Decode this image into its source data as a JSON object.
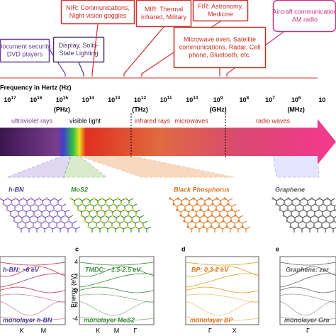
{
  "boxes": [
    {
      "text": [
        "Document security,",
        "DVD players"
      ]
    },
    {
      "text": [
        "Display, Solid-",
        "State Lighting"
      ]
    },
    {
      "text": [
        "NIR: Communications,",
        "Night vision goggles"
      ]
    },
    {
      "text": [
        "MIR: Thermal",
        "infrared, Military"
      ]
    },
    {
      "text": [
        "FIR: Astronomy,",
        "Medicine"
      ]
    },
    {
      "text": [
        "Aircraft communication",
        "AM radio"
      ]
    },
    {
      "text": [
        "Microwave oven, Satellite",
        "communications, Radar, Cell",
        "phone, Bluetooth, etc."
      ]
    }
  ],
  "axis_title": "Frequency in Hertz (Hz)",
  "ticks": [
    {
      "base": "10",
      "exp": "17"
    },
    {
      "base": "10",
      "exp": "16"
    },
    {
      "base": "10",
      "exp": "15",
      "unit": "(PHz)"
    },
    {
      "base": "10",
      "exp": "14"
    },
    {
      "base": "10",
      "exp": "13"
    },
    {
      "base": "10",
      "exp": "12",
      "unit": "(THz)"
    },
    {
      "base": "10",
      "exp": "11"
    },
    {
      "base": "10",
      "exp": "10"
    },
    {
      "base": "10",
      "exp": "9",
      "unit": "(GHz)"
    },
    {
      "base": "10",
      "exp": "8"
    },
    {
      "base": "10",
      "exp": "7"
    },
    {
      "base": "10",
      "exp": "6",
      "unit": "(MHz)"
    },
    {
      "base": "10",
      "exp": ""
    }
  ],
  "regions": [
    "ultraviolet rays",
    "visible light",
    "infrared rays",
    "microwaves",
    "radio waves"
  ],
  "materials": [
    "h-BN",
    "MoS2",
    "Black Phosphorus",
    "Graphene"
  ],
  "panels": [
    {
      "letter": "",
      "header": "h-BN: ~6 eV",
      "caption": "monolayer h-BN",
      "kpoints": [
        "K",
        "M"
      ]
    },
    {
      "letter": "c",
      "header": "TMDC: ~1.5-2.5 eV",
      "caption": "monolayer MoS2",
      "kpoints": [
        "K",
        "M",
        "Γ"
      ]
    },
    {
      "letter": "d",
      "header": "BP: 0.3-2 eV",
      "caption": "monolayer BP",
      "kpoints": [
        "Γ",
        "X"
      ]
    },
    {
      "letter": "e",
      "header": "Graphene: zer",
      "caption": "monolayer Gra",
      "kpoints": [
        "Γ"
      ]
    }
  ],
  "energy_label": "Energy (eV)",
  "energy_ticks": [
    "4",
    "2",
    "0",
    "-2",
    "-4"
  ]
}
